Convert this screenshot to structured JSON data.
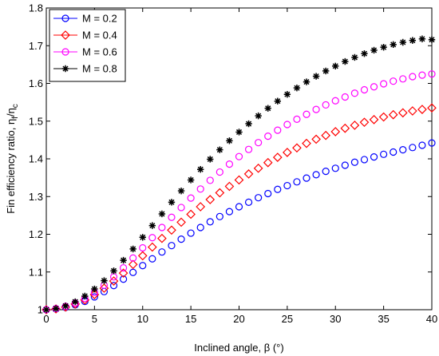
{
  "chart_data": {
    "type": "scatter",
    "title": "",
    "xlabel": "Inclined angle, β (°)",
    "ylabel_main": "Fin efficiency ratio, η",
    "ylabel_sub1": "f",
    "ylabel_mid": "/η",
    "ylabel_sub2": "c",
    "xlim": [
      0,
      40
    ],
    "ylim": [
      1,
      1.8
    ],
    "xticks": [
      "0",
      "5",
      "10",
      "15",
      "20",
      "25",
      "30",
      "35",
      "40"
    ],
    "yticks": [
      "1",
      "1.1",
      "1.2",
      "1.3",
      "1.4",
      "1.5",
      "1.6",
      "1.7",
      "1.8"
    ],
    "grid": false,
    "legend_position": "top-left",
    "x": [
      0,
      1,
      2,
      3,
      4,
      5,
      6,
      7,
      8,
      9,
      10,
      11,
      12,
      13,
      14,
      15,
      16,
      17,
      18,
      19,
      20,
      21,
      22,
      23,
      24,
      25,
      26,
      27,
      28,
      29,
      30,
      31,
      32,
      33,
      34,
      35,
      36,
      37,
      38,
      39,
      40
    ],
    "series": [
      {
        "name": "M = 0.2",
        "marker": "circle",
        "color": "#0000ff",
        "values": [
          1.0,
          1.002,
          1.006,
          1.013,
          1.022,
          1.034,
          1.048,
          1.064,
          1.081,
          1.099,
          1.117,
          1.135,
          1.153,
          1.17,
          1.187,
          1.203,
          1.218,
          1.233,
          1.247,
          1.26,
          1.273,
          1.285,
          1.297,
          1.308,
          1.319,
          1.329,
          1.339,
          1.349,
          1.358,
          1.367,
          1.375,
          1.383,
          1.391,
          1.398,
          1.405,
          1.412,
          1.418,
          1.424,
          1.43,
          1.436,
          1.442
        ]
      },
      {
        "name": "M = 0.4",
        "marker": "diamond",
        "color": "#ff0000",
        "values": [
          1.0,
          1.002,
          1.007,
          1.015,
          1.026,
          1.04,
          1.057,
          1.076,
          1.097,
          1.12,
          1.143,
          1.166,
          1.189,
          1.211,
          1.232,
          1.253,
          1.273,
          1.292,
          1.31,
          1.327,
          1.344,
          1.36,
          1.375,
          1.39,
          1.404,
          1.417,
          1.429,
          1.441,
          1.452,
          1.462,
          1.472,
          1.481,
          1.489,
          1.497,
          1.504,
          1.511,
          1.517,
          1.522,
          1.527,
          1.531,
          1.535
        ]
      },
      {
        "name": "M = 0.6",
        "marker": "circle",
        "color": "#ff00ff",
        "values": [
          1.0,
          1.003,
          1.009,
          1.018,
          1.03,
          1.046,
          1.065,
          1.087,
          1.111,
          1.137,
          1.164,
          1.191,
          1.218,
          1.245,
          1.271,
          1.296,
          1.32,
          1.343,
          1.365,
          1.386,
          1.406,
          1.425,
          1.443,
          1.46,
          1.476,
          1.491,
          1.505,
          1.518,
          1.531,
          1.543,
          1.554,
          1.564,
          1.574,
          1.583,
          1.591,
          1.599,
          1.606,
          1.612,
          1.618,
          1.622,
          1.625
        ]
      },
      {
        "name": "M = 0.8",
        "marker": "star",
        "color": "#000000",
        "values": [
          1.0,
          1.003,
          1.01,
          1.021,
          1.036,
          1.055,
          1.077,
          1.103,
          1.131,
          1.161,
          1.192,
          1.223,
          1.254,
          1.285,
          1.315,
          1.344,
          1.372,
          1.399,
          1.424,
          1.448,
          1.471,
          1.493,
          1.514,
          1.534,
          1.553,
          1.571,
          1.588,
          1.604,
          1.619,
          1.633,
          1.646,
          1.658,
          1.669,
          1.679,
          1.688,
          1.696,
          1.703,
          1.709,
          1.714,
          1.718,
          1.716
        ]
      }
    ]
  }
}
